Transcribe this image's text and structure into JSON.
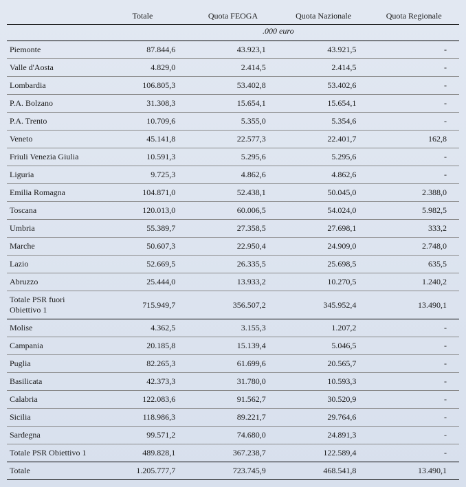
{
  "headers": {
    "c0": "",
    "c1": "Totale",
    "c2": "Quota FEOGA",
    "c3": "Quota Nazionale",
    "c4": "Quota Regionale",
    "unit": ".000 euro"
  },
  "rows": [
    {
      "label": "Piemonte",
      "totale": "87.844,6",
      "feoga": "43.923,1",
      "naz": "43.921,5",
      "reg": "-"
    },
    {
      "label": "Valle d'Aosta",
      "totale": "4.829,0",
      "feoga": "2.414,5",
      "naz": "2.414,5",
      "reg": "-"
    },
    {
      "label": "Lombardia",
      "totale": "106.805,3",
      "feoga": "53.402,8",
      "naz": "53.402,6",
      "reg": "-"
    },
    {
      "label": "P.A. Bolzano",
      "totale": "31.308,3",
      "feoga": "15.654,1",
      "naz": "15.654,1",
      "reg": "-"
    },
    {
      "label": "P.A. Trento",
      "totale": "10.709,6",
      "feoga": "5.355,0",
      "naz": "5.354,6",
      "reg": "-"
    },
    {
      "label": "Veneto",
      "totale": "45.141,8",
      "feoga": "22.577,3",
      "naz": "22.401,7",
      "reg": "162,8"
    },
    {
      "label": "Friuli Venezia Giulia",
      "totale": "10.591,3",
      "feoga": "5.295,6",
      "naz": "5.295,6",
      "reg": "-"
    },
    {
      "label": "Liguria",
      "totale": "9.725,3",
      "feoga": "4.862,6",
      "naz": "4.862,6",
      "reg": "-"
    },
    {
      "label": "Emilia Romagna",
      "totale": "104.871,0",
      "feoga": "52.438,1",
      "naz": "50.045,0",
      "reg": "2.388,0"
    },
    {
      "label": "Toscana",
      "totale": "120.013,0",
      "feoga": "60.006,5",
      "naz": "54.024,0",
      "reg": "5.982,5"
    },
    {
      "label": "Umbria",
      "totale": "55.389,7",
      "feoga": "27.358,5",
      "naz": "27.698,1",
      "reg": "333,2"
    },
    {
      "label": "Marche",
      "totale": "50.607,3",
      "feoga": "22.950,4",
      "naz": "24.909,0",
      "reg": "2.748,0"
    },
    {
      "label": "Lazio",
      "totale": "52.669,5",
      "feoga": "26.335,5",
      "naz": "25.698,5",
      "reg": "635,5"
    },
    {
      "label": "Abruzzo",
      "totale": "25.444,0",
      "feoga": "13.933,2",
      "naz": "10.270,5",
      "reg": "1.240,2"
    }
  ],
  "subtotal1": {
    "label": "Totale PSR fuori Obiettivo 1",
    "totale": "715.949,7",
    "feoga": "356.507,2",
    "naz": "345.952,4",
    "reg": "13.490,1"
  },
  "rows2": [
    {
      "label": "Molise",
      "totale": "4.362,5",
      "feoga": "3.155,3",
      "naz": "1.207,2",
      "reg": "-"
    },
    {
      "label": "Campania",
      "totale": "20.185,8",
      "feoga": "15.139,4",
      "naz": "5.046,5",
      "reg": "-"
    },
    {
      "label": "Puglia",
      "totale": "82.265,3",
      "feoga": "61.699,6",
      "naz": "20.565,7",
      "reg": "-"
    },
    {
      "label": "Basilicata",
      "totale": "42.373,3",
      "feoga": "31.780,0",
      "naz": "10.593,3",
      "reg": "-"
    },
    {
      "label": "Calabria",
      "totale": "122.083,6",
      "feoga": "91.562,7",
      "naz": "30.520,9",
      "reg": "-"
    },
    {
      "label": "Sicilia",
      "totale": "118.986,3",
      "feoga": "89.221,7",
      "naz": "29.764,6",
      "reg": "-"
    },
    {
      "label": "Sardegna",
      "totale": "99.571,2",
      "feoga": "74.680,0",
      "naz": "24.891,3",
      "reg": "-"
    }
  ],
  "subtotal2": {
    "label": "Totale PSR Obiettivo 1",
    "totale": "489.828,1",
    "feoga": "367.238,7",
    "naz": "122.589,4",
    "reg": "-"
  },
  "grand": {
    "label": "Totale",
    "totale": "1.205.777,7",
    "feoga": "723.745,9",
    "naz": "468.541,8",
    "reg": "13.490,1"
  }
}
